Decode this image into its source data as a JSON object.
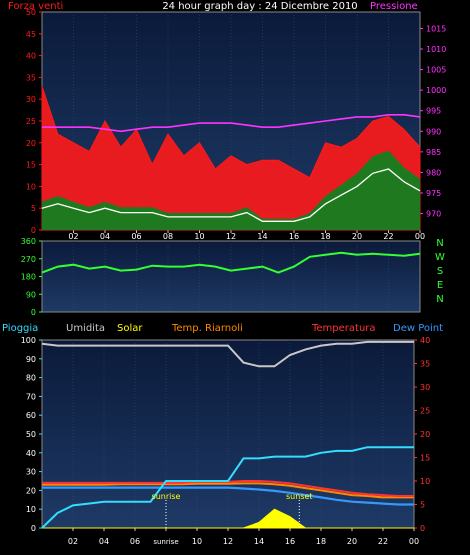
{
  "title": "24 hour graph day : 24 Dicembre 2010",
  "colors": {
    "bg": "#000000",
    "plot_top": "#0b1a3a",
    "plot_bottom": "#1e3a66",
    "grid": "#2c4a78",
    "wind_max": "#ff1a1a",
    "wind_avg": "#ffffff",
    "wind_gust_fill": "#1f7a1f",
    "pressure": "#ff33ff",
    "direction": "#33ff33",
    "rain": "#33ddff",
    "humidity": "#c8c8c8",
    "solar": "#ffff00",
    "temp_apparent": "#ff8800",
    "temperature": "#ff3333",
    "dew_point": "#3399ff"
  },
  "chart_data": [
    {
      "type": "line",
      "title": "24 hour graph day : 24 Dicembre 2010",
      "left_axis_label": "Forza venti",
      "right_axis_label": "Pressione",
      "x_tick_labels": [
        "02",
        "04",
        "06",
        "08",
        "10",
        "12",
        "14",
        "16",
        "18",
        "20",
        "22",
        "00"
      ],
      "left_ticks": [
        0,
        5,
        10,
        15,
        20,
        25,
        30,
        35,
        40,
        45,
        50
      ],
      "right_ticks": [
        970,
        975,
        980,
        985,
        990,
        995,
        1000,
        1005,
        1010,
        1015
      ],
      "left_range": [
        0,
        50
      ],
      "right_range": [
        966,
        1019
      ],
      "x_hours": [
        0,
        1,
        2,
        3,
        4,
        5,
        6,
        7,
        8,
        9,
        10,
        11,
        12,
        13,
        14,
        15,
        16,
        17,
        18,
        19,
        20,
        21,
        22,
        23,
        24
      ],
      "series": [
        {
          "key": "wind_max",
          "values": [
            33,
            22,
            20,
            18,
            25,
            19,
            23,
            15,
            22,
            17,
            20,
            14,
            17,
            15,
            16,
            16,
            14,
            12,
            20,
            19,
            21,
            25,
            26,
            23,
            19
          ]
        },
        {
          "key": "wind_avg",
          "values": [
            5,
            6,
            5,
            4,
            5,
            4,
            4,
            4,
            3,
            3,
            3,
            3,
            3,
            4,
            2,
            2,
            2,
            3,
            6,
            8,
            10,
            13,
            14,
            11,
            9
          ]
        },
        {
          "key": "pressure",
          "values": [
            991,
            991,
            991,
            991,
            990.5,
            990,
            990.5,
            991,
            991,
            991.5,
            992,
            992,
            992,
            991.5,
            991,
            991,
            991.5,
            992,
            992.5,
            993,
            993.5,
            993.5,
            994,
            994,
            993.5
          ]
        }
      ]
    },
    {
      "type": "scatter",
      "direction_labels": [
        "N",
        "W",
        "S",
        "E",
        "N"
      ],
      "y_ticks": [
        0,
        90,
        180,
        270,
        360
      ],
      "y_range": [
        0,
        360
      ],
      "x_tick_labels": [
        "02",
        "04",
        "06",
        "08",
        "10",
        "12",
        "14",
        "16",
        "18",
        "20",
        "22",
        "00"
      ],
      "x_hours": [
        0,
        1,
        2,
        3,
        4,
        5,
        6,
        7,
        8,
        9,
        10,
        11,
        12,
        13,
        14,
        15,
        16,
        17,
        18,
        19,
        20,
        21,
        22,
        23,
        24
      ],
      "series": [
        {
          "key": "direction",
          "values": [
            200,
            230,
            240,
            220,
            230,
            210,
            215,
            235,
            230,
            230,
            240,
            230,
            210,
            220,
            230,
            200,
            230,
            280,
            290,
            300,
            290,
            295,
            290,
            285,
            295
          ]
        }
      ]
    },
    {
      "type": "line",
      "legend": [
        "Pioggia",
        "Umidita",
        "Solar",
        "Temp. Riarnoli",
        "Temperatura",
        "Dew Point"
      ],
      "left_ticks": [
        0,
        10,
        20,
        30,
        40,
        50,
        60,
        70,
        80,
        90,
        100
      ],
      "right_ticks": [
        0,
        5,
        10,
        15,
        20,
        25,
        30,
        35,
        40
      ],
      "left_range": [
        0,
        100
      ],
      "right_range": [
        0,
        40
      ],
      "x_tick_labels": [
        "02",
        "04",
        "06",
        "sunrise",
        "10",
        "12",
        "14",
        "16",
        "18",
        "20",
        "22",
        "00"
      ],
      "annotations": [
        "sunrise",
        "sunset"
      ],
      "x_hours": [
        0,
        1,
        2,
        3,
        4,
        5,
        6,
        7,
        8,
        9,
        10,
        11,
        12,
        13,
        14,
        15,
        16,
        17,
        18,
        19,
        20,
        21,
        22,
        23,
        24
      ],
      "series": [
        {
          "key": "rain",
          "axis": "left",
          "values": [
            0,
            8,
            12,
            13,
            14,
            14,
            14,
            14,
            25,
            25,
            25,
            25,
            25,
            37,
            37,
            38,
            38,
            38,
            40,
            41,
            41,
            43,
            43,
            43,
            43
          ]
        },
        {
          "key": "humidity",
          "axis": "left",
          "values": [
            98,
            97,
            97,
            97,
            97,
            97,
            97,
            97,
            97,
            97,
            97,
            97,
            97,
            88,
            86,
            86,
            92,
            95,
            97,
            98,
            98,
            99,
            99,
            99,
            99
          ]
        },
        {
          "key": "solar",
          "axis": "left",
          "values": [
            0,
            0,
            0,
            0,
            0,
            0,
            0,
            0,
            0,
            0,
            0,
            0,
            0,
            0,
            3,
            10,
            6,
            0,
            0,
            0,
            0,
            0,
            0,
            0,
            0
          ]
        },
        {
          "key": "temp_apparent",
          "axis": "right",
          "values": [
            9.2,
            9.2,
            9.2,
            9.2,
            9.2,
            9.3,
            9.3,
            9.3,
            9.3,
            9.3,
            9.4,
            9.4,
            9.4,
            9.5,
            9.5,
            9.3,
            9.0,
            8.5,
            8.0,
            7.5,
            7.0,
            6.8,
            6.5,
            6.5,
            6.5
          ]
        },
        {
          "key": "temperature",
          "axis": "right",
          "values": [
            9.6,
            9.6,
            9.6,
            9.6,
            9.6,
            9.6,
            9.6,
            9.6,
            9.6,
            9.6,
            9.8,
            9.8,
            9.8,
            10.0,
            10.0,
            9.8,
            9.5,
            9.0,
            8.5,
            8.0,
            7.5,
            7.2,
            7.0,
            6.8,
            6.8
          ]
        },
        {
          "key": "dew_point",
          "axis": "right",
          "values": [
            8.6,
            8.6,
            8.6,
            8.6,
            8.6,
            8.6,
            8.6,
            8.6,
            8.6,
            8.6,
            8.6,
            8.6,
            8.6,
            8.4,
            8.2,
            7.9,
            7.5,
            7.0,
            6.5,
            6.0,
            5.6,
            5.4,
            5.2,
            5.0,
            5.0
          ]
        }
      ]
    }
  ]
}
